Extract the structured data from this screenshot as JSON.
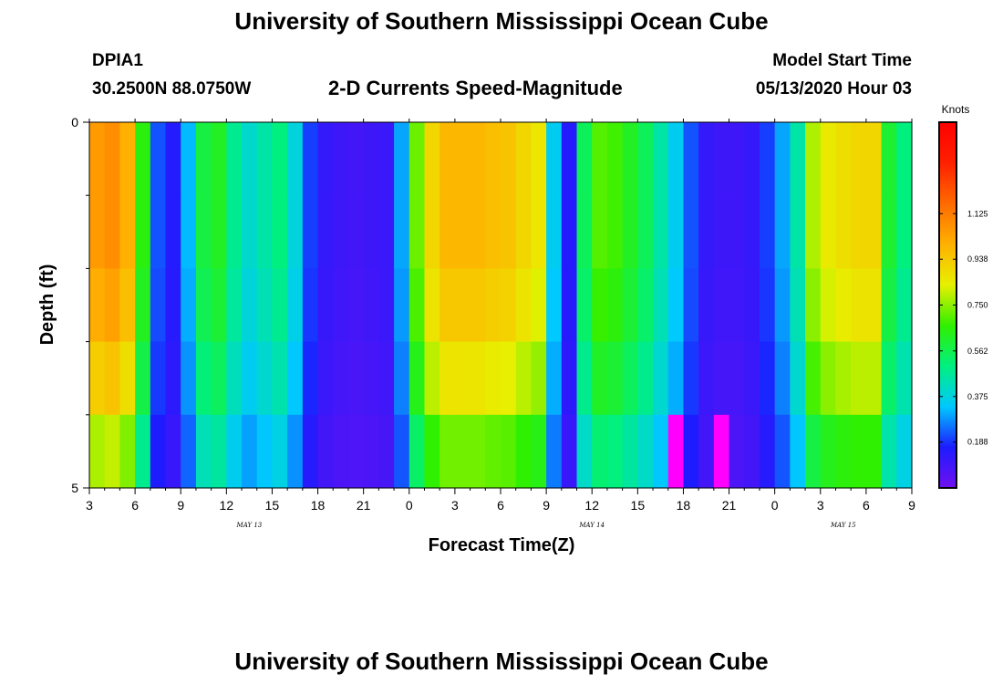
{
  "page": {
    "title_top": "University of Southern Mississippi Ocean Cube",
    "title_bottom": "University of Southern Mississippi Ocean Cube",
    "station_id": "DPIA1",
    "station_coords": "30.2500N 88.0750W",
    "subtitle": "2-D Currents Speed-Magnitude",
    "model_label": "Model Start Time",
    "model_time": "05/13/2020 Hour 03"
  },
  "chart_data": {
    "type": "heatmap",
    "title": "2-D Currents Speed-Magnitude",
    "xlabel": "Forecast Time(Z)",
    "ylabel": "Depth (ft)",
    "x_range_hours": [
      0,
      54
    ],
    "y_range_ft": [
      0,
      5
    ],
    "y_tick_labels": [
      "0",
      "5"
    ],
    "x_tick_labels": [
      "3",
      "6",
      "9",
      "12",
      "15",
      "18",
      "21",
      "0",
      "3",
      "6",
      "9",
      "12",
      "15",
      "18",
      "21",
      "0",
      "3",
      "6",
      "9"
    ],
    "day_labels": [
      {
        "text": "MAY 13",
        "hour": 10.5
      },
      {
        "text": "MAY 14",
        "hour": 33
      },
      {
        "text": "MAY 15",
        "hour": 49.5
      }
    ],
    "depth_bins": 5,
    "time_steps": 54,
    "hours": [
      0,
      1,
      2,
      3,
      4,
      5,
      6,
      7,
      8,
      9,
      10,
      11,
      12,
      13,
      14,
      15,
      16,
      17,
      18,
      19,
      20,
      21,
      22,
      23,
      24,
      25,
      26,
      27,
      28,
      29,
      30,
      31,
      32,
      33,
      34,
      35,
      36,
      37,
      38,
      39,
      40,
      41,
      42,
      43,
      44,
      45,
      46,
      47,
      48,
      49,
      50,
      51,
      52,
      53
    ],
    "colorbar": {
      "unit": "Knots",
      "min": 0.0,
      "max": 1.5,
      "tick_labels": [
        "0.188",
        "0.375",
        "0.562",
        "0.750",
        "0.938",
        "1.125"
      ],
      "tick_values": [
        0.188,
        0.375,
        0.562,
        0.75,
        0.938,
        1.125
      ],
      "colors": [
        "#7010f0",
        "#1c1cff",
        "#00c8ff",
        "#00f080",
        "#30f000",
        "#e8f000",
        "#ffb000",
        "#ff6a00",
        "#ff2000",
        "#ff0000"
      ]
    },
    "surface_speeds": [
      1.05,
      1.08,
      1.0,
      0.65,
      0.22,
      0.15,
      0.32,
      0.58,
      0.62,
      0.48,
      0.4,
      0.45,
      0.5,
      0.38,
      0.2,
      0.12,
      0.1,
      0.09,
      0.1,
      0.11,
      0.3,
      0.72,
      0.9,
      0.98,
      0.98,
      0.98,
      0.96,
      0.95,
      0.9,
      0.86,
      0.35,
      0.15,
      0.55,
      0.7,
      0.68,
      0.62,
      0.55,
      0.45,
      0.35,
      0.22,
      0.12,
      0.1,
      0.1,
      0.12,
      0.2,
      0.3,
      0.45,
      0.78,
      0.85,
      0.88,
      0.9,
      0.9,
      0.6,
      0.5
    ],
    "depth_factor": [
      1.0,
      1.0,
      0.96,
      0.88,
      0.74
    ],
    "bottom_bin_overrides": {
      "38": 0.01,
      "41": 0.02
    }
  }
}
